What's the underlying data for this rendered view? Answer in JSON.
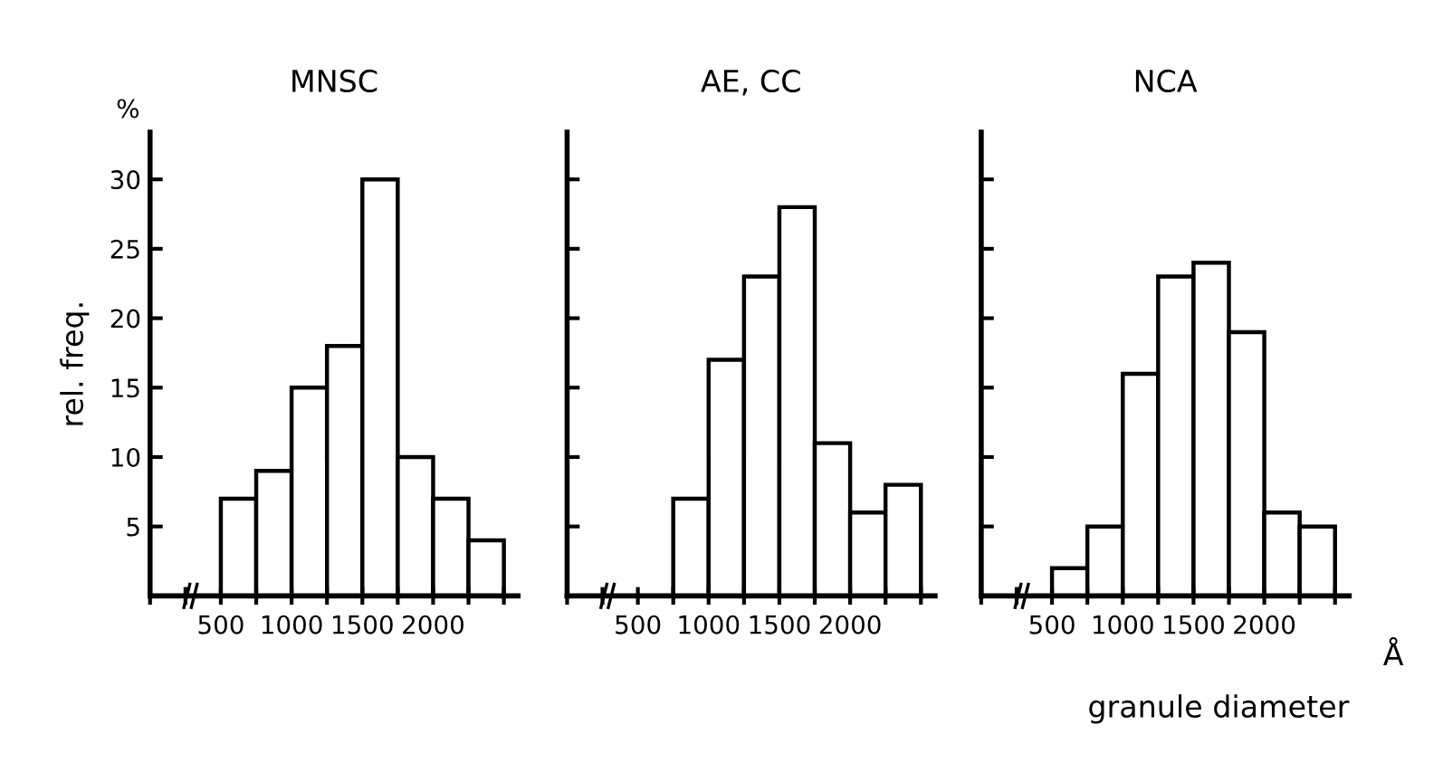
{
  "chart_data": [
    {
      "type": "histogram",
      "title": "MNSC",
      "ylabel": "rel. freq.",
      "annotations": [
        "%"
      ],
      "bins": [
        500,
        750,
        1000,
        1250,
        1500,
        1750,
        2000,
        2250,
        2500
      ],
      "values": [
        7,
        9,
        15,
        18,
        30,
        10,
        7,
        4
      ],
      "color": "#ffffff",
      "xlim": [
        0,
        2600
      ],
      "ylim": [
        0,
        33.4
      ],
      "xticks": [
        {
          "value": 0,
          "label": null
        },
        {
          "value": 250,
          "label": null
        },
        500,
        {
          "value": 750,
          "label": null
        },
        1000,
        {
          "value": 1250,
          "label": null
        },
        1500,
        {
          "value": 1750,
          "label": null
        },
        2000,
        {
          "value": 2250,
          "label": null
        },
        {
          "value": 2500,
          "label": null
        }
      ],
      "yticks": [
        5,
        10,
        15,
        20,
        25,
        30
      ],
      "grid": false
    },
    {
      "type": "histogram",
      "title": "AE, CC",
      "bins": [
        750,
        1000,
        1250,
        1500,
        1750,
        2000,
        2250,
        2500
      ],
      "values": [
        7,
        17,
        23,
        28,
        11,
        6,
        8
      ],
      "color": "#ffffff",
      "xlim": [
        0,
        2600
      ],
      "ylim": [
        0,
        33.4
      ],
      "xticks": [
        {
          "value": 0,
          "label": null
        },
        {
          "value": 250,
          "label": null
        },
        500,
        {
          "value": 750,
          "label": null
        },
        1000,
        {
          "value": 1250,
          "label": null
        },
        1500,
        {
          "value": 1750,
          "label": null
        },
        2000,
        {
          "value": 2250,
          "label": null
        },
        {
          "value": 2500,
          "label": null
        }
      ],
      "yticks": [
        5,
        10,
        15,
        20,
        25,
        30
      ],
      "tick_labels": "x",
      "grid": false
    },
    {
      "type": "histogram",
      "title": "NCA",
      "xlabel": "granule diameter",
      "annotations": [
        "Å"
      ],
      "bins": [
        500,
        750,
        1000,
        1250,
        1500,
        1750,
        2000,
        2250,
        2500
      ],
      "values": [
        2,
        5,
        16,
        23,
        24,
        19,
        6,
        5
      ],
      "color": "#ffffff",
      "xlim": [
        0,
        2600
      ],
      "ylim": [
        0,
        33.4
      ],
      "xticks": [
        {
          "value": 0,
          "label": null
        },
        {
          "value": 250,
          "label": null
        },
        500,
        {
          "value": 750,
          "label": null
        },
        1000,
        {
          "value": 1250,
          "label": null
        },
        1500,
        {
          "value": 1750,
          "label": null
        },
        2000,
        {
          "value": 2250,
          "label": null
        },
        {
          "value": 2500,
          "label": null
        }
      ],
      "yticks": [
        5,
        10,
        15,
        20,
        25,
        30
      ],
      "tick_labels": "x",
      "grid": false
    }
  ]
}
